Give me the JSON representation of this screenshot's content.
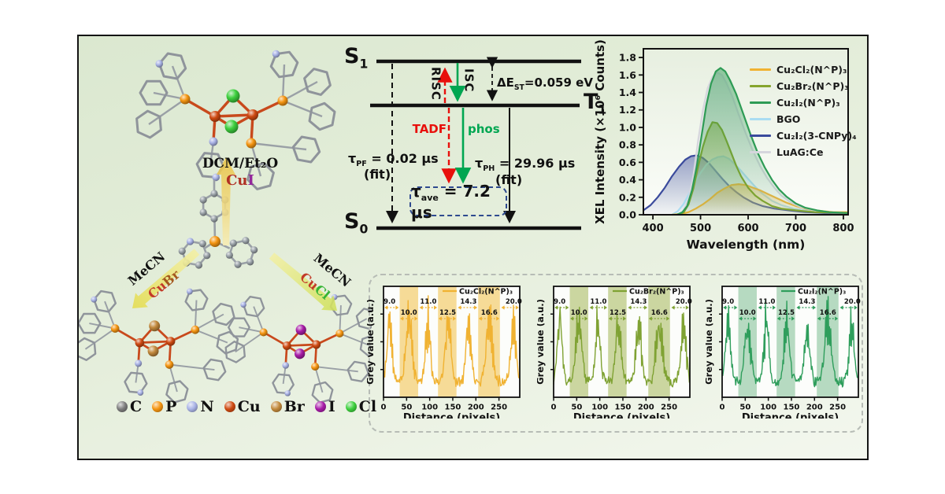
{
  "scheme": {
    "reactions": {
      "top": {
        "solvent": "DCM/Et₂O",
        "metal": "Cu",
        "metal_color": "#b03024",
        "halide": "I",
        "halide_color": "#93279b"
      },
      "left": {
        "solvent": "MeCN",
        "metal": "Cu",
        "metal_color": "#c23a28",
        "halide": "Br",
        "halide_color": "#a4581e"
      },
      "right": {
        "solvent": "MeCN",
        "metal": "Cu",
        "metal_color": "#c23a28",
        "halide": "Cl",
        "halide_color": "#35b435"
      }
    },
    "atom_legend": [
      {
        "symbol": "C",
        "color": "#7d7d7d"
      },
      {
        "symbol": "P",
        "color": "#f59511"
      },
      {
        "symbol": "N",
        "color": "#a9b3e6"
      },
      {
        "symbol": "Cu",
        "color": "#cf4a12"
      },
      {
        "symbol": "Br",
        "color": "#c2893c"
      },
      {
        "symbol": "I",
        "color": "#a81ca8"
      },
      {
        "symbol": "Cl",
        "color": "#3ed03e"
      }
    ]
  },
  "jablonski": {
    "levels": {
      "s1": {
        "base": "S",
        "sub": "1"
      },
      "t1": {
        "base": "T",
        "sub": "1"
      },
      "s0": {
        "base": "S",
        "sub": "0"
      }
    },
    "risc_label": "RISC",
    "isc_label": "ISC",
    "tadf_label": "TADF",
    "phos_label": "phos",
    "delta_est": {
      "base": "ΔE",
      "sub": "ST",
      "value": "=0.059 eV"
    },
    "tau_pf": {
      "sym": "τ",
      "sub": "PF",
      "value": " = 0.02 μs",
      "fit": "(fit)"
    },
    "tau_ph": {
      "sym": "τ",
      "sub": "PH",
      "value": " = 29.96 μs",
      "fit": "(fit)"
    },
    "tau_ave": {
      "sym": "τ",
      "sub": "ave",
      "value": " = 7.2 μs"
    },
    "colors": {
      "risc": "#e8100c",
      "isc": "#00a651",
      "tadf": "#e8100c",
      "phos": "#00a651",
      "box_border": "#2e4a8f"
    }
  },
  "chart_data": [
    {
      "type": "line",
      "xlabel": "Wavelength (nm)",
      "ylabel": "XEL Intensity (×10⁶ Counts)",
      "xlim": [
        380,
        810
      ],
      "ylim": [
        0,
        1.9
      ],
      "x_ticks": [
        400,
        500,
        600,
        700,
        800
      ],
      "y_ticks": [
        "0.0",
        "0.2",
        "0.4",
        "0.6",
        "0.8",
        "1.0",
        "1.2",
        "1.4",
        "1.6",
        "1.8"
      ],
      "legend_position": "top-right",
      "grid": false,
      "series": [
        {
          "name": "Cu₂Cl₂(N^P)₃",
          "color": "#f0b232",
          "points": [
            [
              440,
              0.0
            ],
            [
              460,
              0.01
            ],
            [
              475,
              0.03
            ],
            [
              490,
              0.07
            ],
            [
              505,
              0.12
            ],
            [
              520,
              0.18
            ],
            [
              535,
              0.25
            ],
            [
              550,
              0.3
            ],
            [
              565,
              0.34
            ],
            [
              580,
              0.35
            ],
            [
              595,
              0.34
            ],
            [
              610,
              0.31
            ],
            [
              625,
              0.28
            ],
            [
              640,
              0.24
            ],
            [
              660,
              0.19
            ],
            [
              680,
              0.14
            ],
            [
              700,
              0.1
            ],
            [
              720,
              0.07
            ],
            [
              740,
              0.05
            ],
            [
              760,
              0.04
            ],
            [
              780,
              0.03
            ],
            [
              810,
              0.03
            ]
          ]
        },
        {
          "name": "Cu₂Br₂(N^P)₃",
          "color": "#85a42d",
          "points": [
            [
              455,
              0.0
            ],
            [
              465,
              0.03
            ],
            [
              475,
              0.12
            ],
            [
              485,
              0.3
            ],
            [
              495,
              0.55
            ],
            [
              505,
              0.78
            ],
            [
              515,
              0.95
            ],
            [
              525,
              1.06
            ],
            [
              535,
              1.05
            ],
            [
              545,
              0.97
            ],
            [
              555,
              0.84
            ],
            [
              565,
              0.7
            ],
            [
              575,
              0.56
            ],
            [
              585,
              0.44
            ],
            [
              600,
              0.31
            ],
            [
              615,
              0.22
            ],
            [
              630,
              0.16
            ],
            [
              650,
              0.1
            ],
            [
              670,
              0.07
            ],
            [
              700,
              0.05
            ],
            [
              740,
              0.03
            ],
            [
              810,
              0.02
            ]
          ]
        },
        {
          "name": "Cu₂I₂(N^P)₃",
          "color": "#2e9b55",
          "points": [
            [
              450,
              0.0
            ],
            [
              462,
              0.03
            ],
            [
              472,
              0.1
            ],
            [
              482,
              0.28
            ],
            [
              492,
              0.55
            ],
            [
              502,
              0.9
            ],
            [
              512,
              1.25
            ],
            [
              522,
              1.5
            ],
            [
              532,
              1.64
            ],
            [
              542,
              1.68
            ],
            [
              552,
              1.64
            ],
            [
              562,
              1.54
            ],
            [
              575,
              1.38
            ],
            [
              590,
              1.15
            ],
            [
              605,
              0.92
            ],
            [
              620,
              0.71
            ],
            [
              635,
              0.54
            ],
            [
              650,
              0.4
            ],
            [
              665,
              0.29
            ],
            [
              680,
              0.21
            ],
            [
              700,
              0.13
            ],
            [
              720,
              0.08
            ],
            [
              745,
              0.05
            ],
            [
              770,
              0.03
            ],
            [
              810,
              0.02
            ]
          ]
        },
        {
          "name": "BGO",
          "color": "#aadcf2",
          "points": [
            [
              440,
              0.0
            ],
            [
              452,
              0.04
            ],
            [
              464,
              0.12
            ],
            [
              476,
              0.24
            ],
            [
              488,
              0.37
            ],
            [
              500,
              0.48
            ],
            [
              512,
              0.57
            ],
            [
              524,
              0.63
            ],
            [
              536,
              0.66
            ],
            [
              548,
              0.67
            ],
            [
              560,
              0.64
            ],
            [
              572,
              0.58
            ],
            [
              584,
              0.51
            ],
            [
              600,
              0.41
            ],
            [
              615,
              0.32
            ],
            [
              630,
              0.24
            ],
            [
              650,
              0.16
            ],
            [
              670,
              0.11
            ],
            [
              695,
              0.07
            ],
            [
              720,
              0.05
            ],
            [
              760,
              0.03
            ],
            [
              810,
              0.02
            ]
          ]
        },
        {
          "name": "Cu₂I₂(3-CNPy)₄",
          "color": "#3a4a9c",
          "points": [
            [
              380,
              0.05
            ],
            [
              395,
              0.11
            ],
            [
              410,
              0.2
            ],
            [
              425,
              0.31
            ],
            [
              440,
              0.44
            ],
            [
              455,
              0.55
            ],
            [
              468,
              0.63
            ],
            [
              480,
              0.67
            ],
            [
              492,
              0.68
            ],
            [
              505,
              0.65
            ],
            [
              518,
              0.59
            ],
            [
              532,
              0.5
            ],
            [
              546,
              0.41
            ],
            [
              560,
              0.33
            ],
            [
              575,
              0.26
            ],
            [
              590,
              0.2
            ],
            [
              610,
              0.14
            ],
            [
              630,
              0.1
            ],
            [
              655,
              0.07
            ],
            [
              685,
              0.05
            ],
            [
              720,
              0.03
            ],
            [
              760,
              0.02
            ],
            [
              810,
              0.02
            ]
          ]
        },
        {
          "name": "LuAG:Ce",
          "color": "#d6d6dd",
          "points": [
            [
              455,
              0.0
            ],
            [
              465,
              0.05
            ],
            [
              475,
              0.18
            ],
            [
              485,
              0.45
            ],
            [
              495,
              0.85
            ],
            [
              505,
              1.2
            ],
            [
              515,
              1.45
            ],
            [
              525,
              1.58
            ],
            [
              535,
              1.63
            ],
            [
              545,
              1.6
            ],
            [
              555,
              1.5
            ],
            [
              567,
              1.35
            ],
            [
              580,
              1.15
            ],
            [
              595,
              0.93
            ],
            [
              610,
              0.73
            ],
            [
              625,
              0.56
            ],
            [
              640,
              0.42
            ],
            [
              655,
              0.31
            ],
            [
              670,
              0.22
            ],
            [
              690,
              0.14
            ],
            [
              710,
              0.09
            ],
            [
              740,
              0.05
            ],
            [
              770,
              0.03
            ],
            [
              810,
              0.02
            ]
          ]
        }
      ]
    },
    {
      "type": "line",
      "legend": "Cu₂Cl₂(N^P)₃",
      "xlabel": "Distance (pixels)",
      "ylabel": "Grey value (a.u.)",
      "xlim": [
        0,
        295
      ],
      "x_ticks": [
        0,
        50,
        100,
        150,
        200,
        250
      ],
      "line_color": "#f0b232",
      "band_color": "#f5d585",
      "bands": [
        [
          35,
          75
        ],
        [
          118,
          158
        ],
        [
          205,
          252
        ]
      ],
      "line_pair_labels": [
        {
          "text": "9.0",
          "x": 13,
          "row": 1,
          "span": [
            2,
            33
          ]
        },
        {
          "text": "10.0",
          "x": 55,
          "row": 2,
          "span": [
            36,
            74
          ]
        },
        {
          "text": "11.0",
          "x": 97,
          "row": 1,
          "span": [
            78,
            116
          ]
        },
        {
          "text": "12.5",
          "x": 139,
          "row": 2,
          "span": [
            119,
            157
          ]
        },
        {
          "text": "14.3",
          "x": 184,
          "row": 1,
          "span": [
            161,
            203
          ]
        },
        {
          "text": "16.6",
          "x": 229,
          "row": 2,
          "span": [
            206,
            251
          ]
        },
        {
          "text": "20.0",
          "x": 282,
          "row": 1,
          "span": [
            255,
            293
          ]
        }
      ],
      "peaks": {
        "centers": [
          13,
          55,
          96,
          140,
          184,
          229,
          281
        ],
        "widths": [
          10,
          12,
          10,
          11,
          11,
          13,
          11
        ],
        "amps": [
          0.68,
          0.74,
          0.66,
          0.72,
          0.64,
          0.67,
          0.62
        ]
      },
      "seed": 11
    },
    {
      "type": "line",
      "legend": "Cu₂Br₂(N^P)₃",
      "xlabel": "Distance (pixels)",
      "ylabel": "Grey value (a.u.)",
      "xlim": [
        0,
        295
      ],
      "x_ticks": [
        0,
        50,
        100,
        150,
        200,
        250
      ],
      "line_color": "#7fa233",
      "band_color": "#c2cf8f",
      "bands": [
        [
          35,
          75
        ],
        [
          118,
          158
        ],
        [
          205,
          252
        ]
      ],
      "line_pair_labels": [
        {
          "text": "9.0",
          "x": 13,
          "row": 1,
          "span": [
            2,
            33
          ]
        },
        {
          "text": "10.0",
          "x": 55,
          "row": 2,
          "span": [
            36,
            74
          ]
        },
        {
          "text": "11.0",
          "x": 97,
          "row": 1,
          "span": [
            78,
            116
          ]
        },
        {
          "text": "12.5",
          "x": 139,
          "row": 2,
          "span": [
            119,
            157
          ]
        },
        {
          "text": "14.3",
          "x": 184,
          "row": 1,
          "span": [
            161,
            203
          ]
        },
        {
          "text": "16.6",
          "x": 229,
          "row": 2,
          "span": [
            206,
            251
          ]
        },
        {
          "text": "20.0",
          "x": 282,
          "row": 1,
          "span": [
            255,
            293
          ]
        }
      ],
      "peaks": {
        "centers": [
          13,
          55,
          96,
          140,
          184,
          229,
          281
        ],
        "widths": [
          10,
          12,
          10,
          11,
          11,
          13,
          11
        ],
        "amps": [
          0.7,
          0.72,
          0.68,
          0.71,
          0.62,
          0.68,
          0.6
        ]
      },
      "seed": 23
    },
    {
      "type": "line",
      "legend": "Cu₂I₂(N^P)₃",
      "xlabel": "Distance (pixels)",
      "ylabel": "Grey value (a.u.)",
      "xlim": [
        0,
        295
      ],
      "x_ticks": [
        0,
        50,
        100,
        150,
        200,
        250
      ],
      "line_color": "#2f9e5c",
      "band_color": "#a9d4b6",
      "bands": [
        [
          35,
          75
        ],
        [
          118,
          158
        ],
        [
          205,
          252
        ]
      ],
      "line_pair_labels": [
        {
          "text": "9.0",
          "x": 13,
          "row": 1,
          "span": [
            2,
            33
          ]
        },
        {
          "text": "10.0",
          "x": 55,
          "row": 2,
          "span": [
            36,
            74
          ]
        },
        {
          "text": "11.0",
          "x": 97,
          "row": 1,
          "span": [
            78,
            116
          ]
        },
        {
          "text": "12.5",
          "x": 139,
          "row": 2,
          "span": [
            119,
            157
          ]
        },
        {
          "text": "14.3",
          "x": 184,
          "row": 1,
          "span": [
            161,
            203
          ]
        },
        {
          "text": "16.6",
          "x": 229,
          "row": 2,
          "span": [
            206,
            251
          ]
        },
        {
          "text": "20.0",
          "x": 282,
          "row": 1,
          "span": [
            255,
            293
          ]
        }
      ],
      "peaks": {
        "centers": [
          13,
          55,
          96,
          140,
          184,
          229,
          281
        ],
        "widths": [
          10,
          12,
          10,
          11,
          11,
          13,
          11
        ],
        "amps": [
          0.72,
          0.7,
          0.69,
          0.66,
          0.6,
          0.68,
          0.58
        ]
      },
      "seed": 37
    }
  ]
}
